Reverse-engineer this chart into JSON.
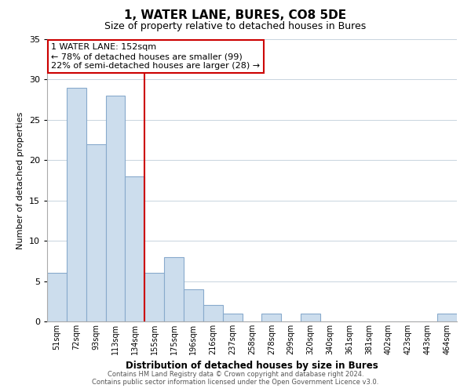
{
  "title": "1, WATER LANE, BURES, CO8 5DE",
  "subtitle": "Size of property relative to detached houses in Bures",
  "xlabel": "Distribution of detached houses by size in Bures",
  "ylabel": "Number of detached properties",
  "bar_labels": [
    "51sqm",
    "72sqm",
    "93sqm",
    "113sqm",
    "134sqm",
    "155sqm",
    "175sqm",
    "196sqm",
    "216sqm",
    "237sqm",
    "258sqm",
    "278sqm",
    "299sqm",
    "320sqm",
    "340sqm",
    "361sqm",
    "381sqm",
    "402sqm",
    "423sqm",
    "443sqm",
    "464sqm"
  ],
  "bar_values": [
    6,
    29,
    22,
    28,
    18,
    6,
    8,
    4,
    2,
    1,
    0,
    1,
    0,
    1,
    0,
    0,
    0,
    0,
    0,
    0,
    1
  ],
  "bar_color": "#ccdded",
  "bar_edge_color": "#88aacc",
  "highlight_line_color": "#cc0000",
  "ylim": [
    0,
    35
  ],
  "yticks": [
    0,
    5,
    10,
    15,
    20,
    25,
    30,
    35
  ],
  "annotation_line1": "1 WATER LANE: 152sqm",
  "annotation_line2": "← 78% of detached houses are smaller (99)",
  "annotation_line3": "22% of semi-detached houses are larger (28) →",
  "annotation_box_edge": "#cc0000",
  "footer_line1": "Contains HM Land Registry data © Crown copyright and database right 2024.",
  "footer_line2": "Contains public sector information licensed under the Open Government Licence v3.0.",
  "background_color": "#ffffff",
  "grid_color": "#c8d4de"
}
